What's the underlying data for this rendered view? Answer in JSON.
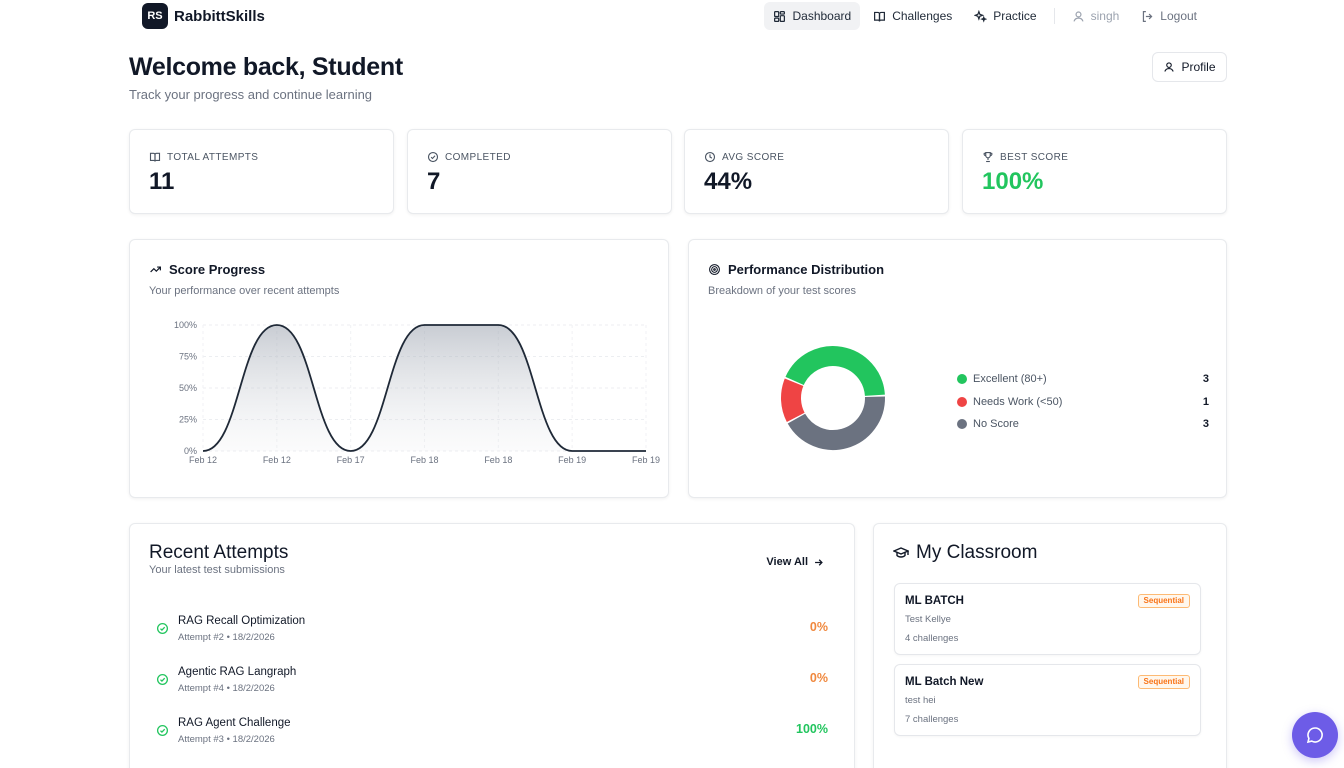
{
  "brand": {
    "badge": "RS",
    "name": "RabbittSkills"
  },
  "nav": {
    "dashboard": "Dashboard",
    "challenges": "Challenges",
    "practice": "Practice",
    "user": "singh",
    "logout": "Logout"
  },
  "header": {
    "title": "Welcome back, Student",
    "subtitle": "Track your progress and continue learning",
    "profile": "Profile"
  },
  "stats": [
    {
      "label": "TOTAL ATTEMPTS",
      "value": "11",
      "icon": "book-icon"
    },
    {
      "label": "COMPLETED",
      "value": "7",
      "icon": "check-circle-icon"
    },
    {
      "label": "AVG SCORE",
      "value": "44%",
      "icon": "clock-icon"
    },
    {
      "label": "BEST SCORE",
      "value": "100%",
      "icon": "trophy-icon",
      "color": "#22c55e"
    }
  ],
  "score_progress": {
    "title": "Score Progress",
    "subtitle": "Your performance over recent attempts"
  },
  "distribution": {
    "title": "Performance Distribution",
    "subtitle": "Breakdown of your test scores"
  },
  "chart_data": [
    {
      "type": "area",
      "x": [
        "Feb 12",
        "Feb 12",
        "Feb 17",
        "Feb 18",
        "Feb 18",
        "Feb 19",
        "Feb 19"
      ],
      "values": [
        0,
        100,
        0,
        100,
        100,
        0,
        0
      ],
      "yticks": [
        "0%",
        "25%",
        "50%",
        "75%",
        "100%"
      ],
      "ylim": [
        0,
        100
      ],
      "grid": true,
      "color": "#1f2937"
    },
    {
      "type": "pie",
      "labels": [
        "Excellent (80+)",
        "Needs Work (<50)",
        "No Score"
      ],
      "values": [
        3,
        1,
        3
      ],
      "colors": [
        "#22c55e",
        "#ef4444",
        "#6b7280"
      ],
      "donut": true,
      "legend": "right"
    }
  ],
  "recent": {
    "title": "Recent Attempts",
    "subtitle": "Your latest test submissions",
    "view_all": "View All",
    "items": [
      {
        "name": "RAG Recall Optimization",
        "meta": "Attempt #2 • 18/2/2026",
        "score": "0%",
        "color": "orange"
      },
      {
        "name": "Agentic RAG Langraph",
        "meta": "Attempt #4 • 18/2/2026",
        "score": "0%",
        "color": "orange"
      },
      {
        "name": "RAG Agent Challenge",
        "meta": "Attempt #3 • 18/2/2026",
        "score": "100%",
        "color": "green"
      }
    ]
  },
  "classroom": {
    "title": "My Classroom",
    "items": [
      {
        "name": "ML BATCH",
        "desc": "Test Kellye",
        "count": "4 challenges",
        "badge": "Sequential"
      },
      {
        "name": "ML Batch New",
        "desc": "test hei",
        "count": "7 challenges",
        "badge": "Sequential"
      }
    ]
  }
}
